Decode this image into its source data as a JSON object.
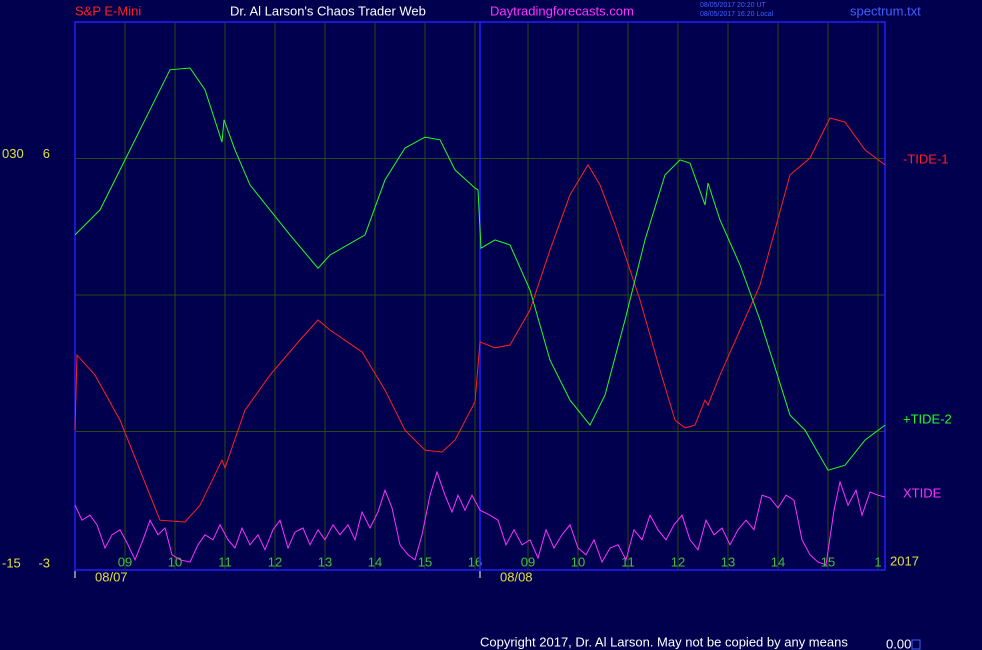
{
  "chart_data": {
    "type": "line",
    "title": "Dr. Al Larson's Chaos Trader Web",
    "subtitle": "S&P E-Mini",
    "source": "Daytradingforecasts.com",
    "timestamps": [
      "08/05/2017 20:20 UT",
      "08/05/2017 16:20 Local"
    ],
    "file": "spectrum.txt",
    "copyright": "Copyright 2017, Dr. Al Larson. May not be copied by any means",
    "footer_value": "0.00",
    "year": "2017",
    "date_labels": [
      "08/07",
      "08/08"
    ],
    "xlim": [
      0,
      16.2
    ],
    "xticks": [
      {
        "value": 1,
        "label": "09"
      },
      {
        "value": 2,
        "label": "10"
      },
      {
        "value": 3,
        "label": "11"
      },
      {
        "value": 4,
        "label": "12"
      },
      {
        "value": 5,
        "label": "13"
      },
      {
        "value": 6,
        "label": "14"
      },
      {
        "value": 7,
        "label": "15"
      },
      {
        "value": 8,
        "label": "16"
      },
      {
        "value": 9.06,
        "label": "09"
      },
      {
        "value": 10.06,
        "label": "10"
      },
      {
        "value": 11.06,
        "label": "11"
      },
      {
        "value": 12.06,
        "label": "12"
      },
      {
        "value": 13.06,
        "label": "13"
      },
      {
        "value": 14.06,
        "label": "14"
      },
      {
        "value": 15.06,
        "label": "15"
      },
      {
        "value": 16.06,
        "label": "1"
      }
    ],
    "day_divider": 8.1,
    "ylim": [
      -3,
      9
    ],
    "yticks": [
      6,
      -3
    ],
    "grid_lines": [
      6,
      3,
      0
    ],
    "y2lim": [
      -15,
      45
    ],
    "y2ticks": [
      {
        "value": 30,
        "label": "030"
      },
      -15
    ],
    "grid": true,
    "series": [
      {
        "name": "-TIDE-1",
        "color": "#ff2020",
        "x": [
          0,
          0.04,
          0.4,
          0.9,
          1.3,
          1.7,
          2.2,
          2.5,
          2.94,
          3.0,
          3.4,
          3.9,
          4.5,
          4.86,
          5.1,
          5.74,
          6.2,
          6.6,
          7.0,
          7.34,
          7.6,
          8.0,
          8.1,
          8.4,
          8.7,
          9.1,
          9.5,
          9.9,
          10.26,
          10.5,
          10.8,
          11.3,
          11.7,
          12.0,
          12.2,
          12.4,
          12.6,
          12.66,
          12.9,
          13.3,
          13.7,
          14.3,
          14.7,
          15.1,
          15.4,
          15.8,
          16.2
        ],
        "values": [
          0.03,
          1.68,
          1.24,
          0.25,
          -0.85,
          -1.95,
          -1.99,
          -1.62,
          -0.63,
          -0.8,
          0.47,
          1.24,
          2.01,
          2.45,
          2.23,
          1.75,
          0.91,
          0.03,
          -0.41,
          -0.45,
          -0.19,
          0.65,
          1.97,
          1.84,
          1.9,
          2.67,
          3.99,
          5.2,
          5.86,
          5.42,
          4.54,
          2.89,
          1.35,
          0.25,
          0.08,
          0.14,
          0.69,
          0.58,
          1.24,
          2.23,
          3.22,
          5.64,
          6.01,
          6.89,
          6.8,
          6.19,
          5.86
        ]
      },
      {
        "name": "+TIDE-2",
        "color": "#20ff20",
        "x": [
          0,
          0.5,
          1.0,
          1.5,
          1.9,
          2.3,
          2.6,
          2.94,
          2.98,
          3.2,
          3.5,
          4.3,
          4.86,
          5.1,
          5.8,
          6.2,
          6.6,
          7.0,
          7.3,
          7.6,
          8.0,
          8.06,
          8.12,
          8.4,
          8.7,
          9.1,
          9.5,
          9.9,
          10.3,
          10.6,
          11.0,
          11.4,
          11.8,
          12.1,
          12.3,
          12.6,
          12.66,
          12.9,
          13.3,
          13.7,
          14.3,
          14.6,
          15.06,
          15.4,
          15.8,
          16.2
        ],
        "values": [
          4.32,
          4.87,
          5.97,
          7.07,
          7.95,
          7.99,
          7.51,
          6.36,
          6.85,
          6.19,
          5.42,
          4.32,
          3.59,
          3.88,
          4.32,
          5.53,
          6.23,
          6.47,
          6.41,
          5.75,
          5.35,
          5.31,
          4.03,
          4.21,
          4.1,
          3.11,
          1.57,
          0.69,
          0.14,
          0.8,
          2.45,
          4.21,
          5.64,
          5.97,
          5.9,
          4.98,
          5.46,
          4.65,
          3.66,
          2.45,
          0.36,
          0.03,
          -0.85,
          -0.74,
          -0.19,
          0.14
        ]
      },
      {
        "name": "XTIDE",
        "color": "#ff30ff",
        "x": [
          0,
          0.14,
          0.3,
          0.44,
          0.6,
          0.74,
          0.9,
          1.06,
          1.2,
          1.36,
          1.5,
          1.66,
          1.8,
          1.94,
          2.1,
          2.3,
          2.46,
          2.6,
          2.76,
          2.9,
          3.06,
          3.2,
          3.34,
          3.5,
          3.66,
          3.8,
          3.96,
          4.1,
          4.26,
          4.4,
          4.56,
          4.7,
          4.86,
          5.0,
          5.16,
          5.3,
          5.46,
          5.6,
          5.74,
          5.9,
          6.06,
          6.2,
          6.34,
          6.5,
          6.66,
          6.8,
          6.94,
          7.1,
          7.24,
          7.4,
          7.54,
          7.66,
          7.8,
          7.94,
          8.1,
          8.3,
          8.46,
          8.62,
          8.78,
          8.94,
          9.1,
          9.26,
          9.42,
          9.58,
          9.74,
          9.9,
          10.06,
          10.22,
          10.38,
          10.54,
          10.7,
          10.86,
          11.02,
          11.18,
          11.34,
          11.5,
          11.66,
          11.82,
          11.98,
          12.14,
          12.3,
          12.46,
          12.62,
          12.78,
          12.94,
          13.1,
          13.26,
          13.42,
          13.58,
          13.74,
          13.9,
          14.06,
          14.22,
          14.38,
          14.54,
          14.7,
          14.86,
          15.02,
          15.18,
          15.3,
          15.46,
          15.62,
          15.74,
          15.9,
          16.06,
          16.2
        ],
        "values": [
          -1.62,
          -1.95,
          -1.84,
          -2.05,
          -2.56,
          -2.27,
          -2.16,
          -2.49,
          -2.82,
          -2.38,
          -1.95,
          -2.27,
          -2.12,
          -2.71,
          -2.82,
          -2.87,
          -2.49,
          -2.27,
          -2.38,
          -2.05,
          -2.38,
          -2.56,
          -2.12,
          -2.49,
          -2.27,
          -2.6,
          -2.16,
          -1.95,
          -2.56,
          -2.21,
          -2.12,
          -2.49,
          -2.16,
          -2.38,
          -2.05,
          -2.27,
          -2.05,
          -2.38,
          -1.77,
          -2.12,
          -1.77,
          -1.29,
          -1.68,
          -2.49,
          -2.71,
          -2.82,
          -2.27,
          -1.4,
          -0.89,
          -1.4,
          -1.77,
          -1.4,
          -1.73,
          -1.4,
          -1.73,
          -1.84,
          -1.95,
          -2.49,
          -2.16,
          -2.49,
          -2.38,
          -2.78,
          -2.16,
          -2.56,
          -2.27,
          -2.05,
          -2.56,
          -2.71,
          -2.38,
          -2.87,
          -2.56,
          -2.49,
          -2.82,
          -2.16,
          -2.38,
          -1.84,
          -2.16,
          -2.38,
          -2.05,
          -1.84,
          -2.38,
          -2.6,
          -1.95,
          -2.27,
          -2.12,
          -2.49,
          -2.16,
          -1.95,
          -2.16,
          -1.4,
          -1.46,
          -1.68,
          -1.4,
          -1.51,
          -2.38,
          -2.71,
          -2.87,
          -2.93,
          -1.73,
          -1.11,
          -1.62,
          -1.29,
          -1.84,
          -1.33,
          -1.4,
          -1.44
        ]
      }
    ]
  }
}
